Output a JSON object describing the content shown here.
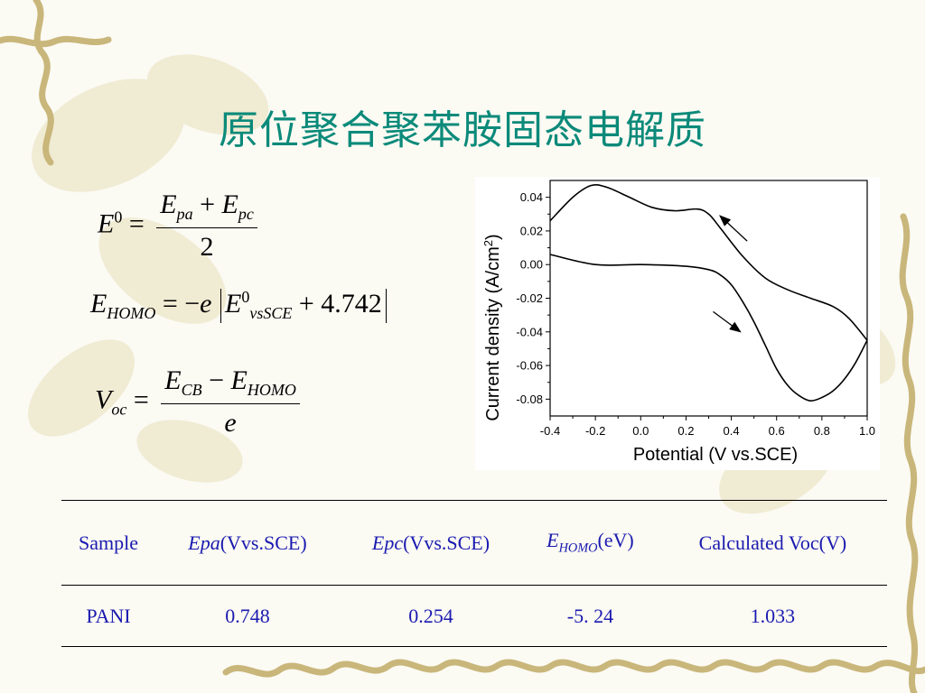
{
  "slide": {
    "title": "原位聚合聚苯胺固态电解质"
  },
  "formulas": {
    "e0": {
      "lhs": "E",
      "lhs_sup": "0",
      "eq": "=",
      "num_a": "E",
      "num_a_sub": "pa",
      "plus": "+",
      "num_b": "E",
      "num_b_sub": "pc",
      "den": "2"
    },
    "ehomo": {
      "lhs": "E",
      "lhs_sub": "HOMO",
      "eq": "=",
      "minus": "−",
      "e": "e",
      "inner": "E",
      "inner_sup": "0",
      "inner_sub": "vsSCE",
      "plus": "+",
      "const": "4.742"
    },
    "voc": {
      "lhs": "V",
      "lhs_sub": "oc",
      "eq": "=",
      "num_a": "E",
      "num_a_sub": "CB",
      "minus": "−",
      "num_b": "E",
      "num_b_sub": "HOMO",
      "den": "e"
    }
  },
  "chart_data": {
    "type": "line",
    "xlabel": "Potential (V vs.SCE)",
    "ylabel": "Current density (A/cm",
    "ylabel_sup": "2",
    "ylabel_end": ")",
    "xlim": [
      -0.4,
      1.0
    ],
    "ylim": [
      -0.09,
      0.05
    ],
    "xticks": [
      "-0.4",
      "-0.2",
      "0.0",
      "0.2",
      "0.4",
      "0.6",
      "0.8",
      "1.0"
    ],
    "xtick_values": [
      -0.4,
      -0.2,
      0.0,
      0.2,
      0.4,
      0.6,
      0.8,
      1.0
    ],
    "yticks": [
      "0.04",
      "0.02",
      "0.00",
      "-0.02",
      "-0.04",
      "-0.06",
      "-0.08"
    ],
    "ytick_values": [
      0.04,
      0.02,
      0.0,
      -0.02,
      -0.04,
      -0.06,
      -0.08
    ],
    "grid": false,
    "series": [
      {
        "x": [
          -0.4,
          -0.3,
          -0.22,
          -0.15,
          -0.05,
          0.05,
          0.15,
          0.25,
          0.3,
          0.35,
          0.45,
          0.55,
          0.65,
          0.75,
          0.85,
          0.92,
          1.0
        ],
        "y": [
          0.026,
          0.04,
          0.047,
          0.046,
          0.04,
          0.034,
          0.032,
          0.033,
          0.03,
          0.022,
          0.005,
          -0.008,
          -0.015,
          -0.02,
          -0.025,
          -0.032,
          -0.045
        ],
        "direction": "reverse"
      },
      {
        "x": [
          1.0,
          0.95,
          0.9,
          0.85,
          0.8,
          0.75,
          0.7,
          0.65,
          0.6,
          0.55,
          0.5,
          0.45,
          0.4,
          0.35,
          0.3,
          0.2,
          0.0,
          -0.2,
          -0.4
        ],
        "y": [
          -0.045,
          -0.058,
          -0.068,
          -0.075,
          -0.079,
          -0.081,
          -0.078,
          -0.072,
          -0.062,
          -0.048,
          -0.034,
          -0.022,
          -0.012,
          -0.006,
          -0.003,
          -0.001,
          0.0,
          0.0,
          0.006
        ],
        "direction": "forward"
      }
    ],
    "arrows": [
      {
        "from": [
          0.47,
          0.014
        ],
        "to": [
          0.35,
          0.029
        ]
      },
      {
        "from": [
          0.32,
          -0.028
        ],
        "to": [
          0.44,
          -0.04
        ]
      }
    ]
  },
  "table": {
    "headers": {
      "sample": "Sample",
      "epa_italic": "Epa",
      "epa_unit": "(Vvs.SCE)",
      "epc_italic": "Epc",
      "epc_unit": "(Vvs.SCE)",
      "ehomo_e": "E",
      "ehomo_sub": "HOMO",
      "ehomo_unit": "(eV)",
      "voc": "Calculated Voc(V)"
    },
    "rows": [
      {
        "sample": "PANI",
        "epa": "0.748",
        "epc": "0.254",
        "ehomo": "-5. 24",
        "voc": "1.033"
      }
    ]
  }
}
